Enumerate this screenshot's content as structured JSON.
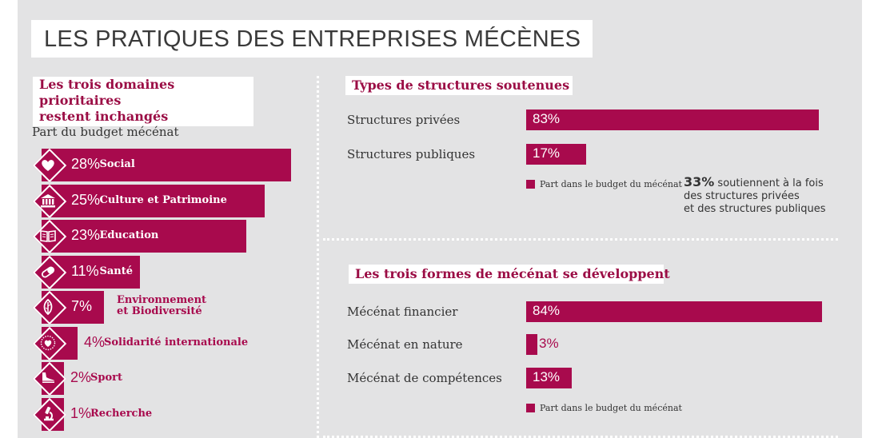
{
  "title": "LES PRATIQUES DES ENTREPRISES MÉCÈNES",
  "left": {
    "heading_line1": "Les trois domaines prioritaires",
    "heading_line2": "restent inchangés",
    "subtitle": "Part du budget mécénat"
  },
  "right_top": {
    "heading": "Types de structures soutenues",
    "legend": "Part dans le budget du mécénat",
    "note_pct": "33%",
    "note_line1": " soutiennent à la fois",
    "note_line2": "des structures privées",
    "note_line3": "et des structures publiques"
  },
  "right_bottom": {
    "heading": "Les trois formes de mécénat se développent",
    "legend": "Part dans le budget du mécénat"
  },
  "colors": {
    "accent": "#a80a4d",
    "panel": "#e3e3e4"
  },
  "chart_data": [
    {
      "type": "bar",
      "title": "Part du budget mécénat",
      "categories": [
        "Social",
        "Culture et Patrimoine",
        "Education",
        "Santé",
        "Environnement et Biodiversité",
        "Solidarité internationale",
        "Sport",
        "Recherche"
      ],
      "labels": [
        [
          "Social"
        ],
        [
          "Culture et Patrimoine"
        ],
        [
          "Education"
        ],
        [
          "Santé"
        ],
        [
          "Environnement",
          "et Biodiversité"
        ],
        [
          "Solidarité internationale"
        ],
        [
          "Sport"
        ],
        [
          "Recherche"
        ]
      ],
      "icons": [
        "heart-icon",
        "museum-icon",
        "book-icon",
        "pill-icon",
        "leaf-icon",
        "globe-heart-icon",
        "shoe-icon",
        "microscope-icon"
      ],
      "values": [
        28,
        25,
        23,
        11,
        7,
        4,
        2,
        1
      ],
      "value_labels": [
        "28%",
        "25%",
        "23%",
        "11%",
        "7%",
        "4%",
        "2%",
        "1%"
      ],
      "unit": "%"
    },
    {
      "type": "bar",
      "title": "Types de structures soutenues",
      "categories": [
        "Structures privées",
        "Structures publiques"
      ],
      "values": [
        83,
        17
      ],
      "value_labels": [
        "83%",
        "17%"
      ],
      "unit": "%"
    },
    {
      "type": "bar",
      "title": "Les trois formes de mécénat se développent",
      "categories": [
        "Mécénat financier",
        "Mécénat en nature",
        "Mécénat de compétences"
      ],
      "values": [
        84,
        3,
        13
      ],
      "value_labels": [
        "84%",
        "3%",
        "13%"
      ],
      "unit": "%"
    }
  ]
}
